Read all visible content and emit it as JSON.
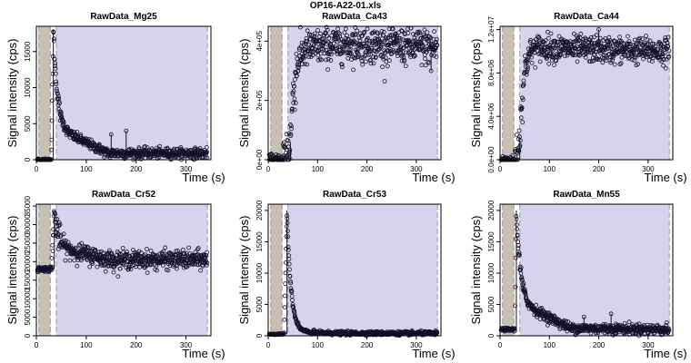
{
  "page": {
    "title": "OP16-A22-01.xls"
  },
  "colors": {
    "background_window": "#c8c0b2",
    "signal_window": "#d6d3ee",
    "window_dash": "#9999aa",
    "points": "#14102a"
  },
  "chart_data": [
    {
      "type": "scatter",
      "title": "RawData_Mg25",
      "xlabel": "Time (s)",
      "ylabel": "Signal intensity (cps)",
      "xlim": [
        0,
        350
      ],
      "ylim": [
        0,
        18500
      ],
      "xticks": [
        0,
        100,
        200,
        300
      ],
      "xtick_labels": [
        "0",
        "100",
        "200",
        "300"
      ],
      "yticks": [
        0,
        5000,
        10000,
        15000
      ],
      "ytick_labels": [
        "0",
        "5000",
        "10000",
        "15000"
      ],
      "background_window": [
        5,
        28
      ],
      "signal_window": [
        40,
        343
      ],
      "profile": {
        "pre_value": 0,
        "onset": 30,
        "spike_time": 34,
        "spike_value": 18000,
        "plateau_early": 4500,
        "plateau_mid": 900,
        "plateau_late": 900,
        "noise": 350,
        "outliers": [
          [
            150,
            3500
          ],
          [
            180,
            4000
          ]
        ]
      }
    },
    {
      "type": "scatter",
      "title": "RawData_Ca43",
      "xlabel": "Time (s)",
      "ylabel": "Signal intensity (cps)",
      "xlim": [
        0,
        350
      ],
      "ylim": [
        0,
        450000
      ],
      "xticks": [
        0,
        100,
        200,
        300
      ],
      "xtick_labels": [
        "0",
        "100",
        "200",
        "300"
      ],
      "yticks": [
        0,
        200000,
        400000
      ],
      "ytick_labels": [
        "0e+00",
        "2e+05",
        "4e+05"
      ],
      "background_window": [
        5,
        28
      ],
      "signal_window": [
        40,
        343
      ],
      "profile": {
        "pre_value": 0,
        "onset": 30,
        "spike_time": 45,
        "spike_value": 60000,
        "plateau_early": 370000,
        "plateau_mid": 390000,
        "plateau_late": 380000,
        "noise": 30000,
        "outliers": [
          [
            258,
            425000
          ],
          [
            330,
            300000
          ]
        ]
      }
    },
    {
      "type": "scatter",
      "title": "RawData_Ca44",
      "xlabel": "Time (s)",
      "ylabel": "Signal intensity (cps)",
      "xlim": [
        0,
        350
      ],
      "ylim": [
        0,
        12300000
      ],
      "xticks": [
        0,
        100,
        200,
        300
      ],
      "xtick_labels": [
        "0",
        "100",
        "200",
        "300"
      ],
      "yticks": [
        0,
        4000000,
        8000000,
        12000000
      ],
      "ytick_labels": [
        "0.0e+00",
        "4.0e+06",
        "8.0e+06",
        "1.2e+07"
      ],
      "background_window": [
        5,
        28
      ],
      "signal_window": [
        40,
        343
      ],
      "profile": {
        "pre_value": 0,
        "onset": 30,
        "spike_time": 40,
        "spike_value": 2000000,
        "plateau_early": 10500000,
        "plateau_mid": 10200000,
        "plateau_late": 10000000,
        "noise": 600000,
        "outliers": [
          [
            200,
            12000000
          ]
        ]
      }
    },
    {
      "type": "scatter",
      "title": "RawData_Cr52",
      "xlabel": "Time (s)",
      "ylabel": "Signal intensity (cps)",
      "xlim": [
        0,
        350
      ],
      "ylim": [
        0,
        35500
      ],
      "xticks": [
        0,
        100,
        200,
        300
      ],
      "xtick_labels": [
        "0",
        "100",
        "200",
        "300"
      ],
      "yticks": [
        0,
        5000,
        10000,
        15000,
        20000,
        25000,
        30000,
        35000
      ],
      "ytick_labels": [
        "0",
        "5000",
        "10000",
        "15000",
        "20000",
        "25000",
        "30000",
        "35000"
      ],
      "background_window": [
        5,
        28
      ],
      "signal_window": [
        40,
        343
      ],
      "profile": {
        "pre_value": 18000,
        "onset": 30,
        "spike_time": 36,
        "spike_value": 33000,
        "plateau_early": 24000,
        "plateau_mid": 20500,
        "plateau_late": 20500,
        "noise": 1200,
        "outliers": []
      }
    },
    {
      "type": "scatter",
      "title": "RawData_Cr53",
      "xlabel": "Time (s)",
      "ylabel": "Signal intensity (cps)",
      "xlim": [
        0,
        350
      ],
      "ylim": [
        0,
        21000
      ],
      "xticks": [
        0,
        100,
        200,
        300
      ],
      "xtick_labels": [
        "0",
        "100",
        "200",
        "300"
      ],
      "yticks": [
        0,
        5000,
        10000,
        15000,
        20000
      ],
      "ytick_labels": [
        "0",
        "5000",
        "10000",
        "15000",
        "20000"
      ],
      "background_window": [
        5,
        28
      ],
      "signal_window": [
        40,
        343
      ],
      "profile": {
        "pre_value": 250,
        "onset": 32,
        "spike_time": 38,
        "spike_value": 20000,
        "plateau_early": 600,
        "plateau_mid": 400,
        "plateau_late": 400,
        "noise": 150,
        "outliers": []
      }
    },
    {
      "type": "scatter",
      "title": "RawData_Mn55",
      "xlabel": "Time (s)",
      "ylabel": "Signal intensity (cps)",
      "xlim": [
        0,
        350
      ],
      "ylim": [
        0,
        21000
      ],
      "xticks": [
        0,
        100,
        200,
        300
      ],
      "xtick_labels": [
        "0",
        "100",
        "200",
        "300"
      ],
      "yticks": [
        0,
        5000,
        10000,
        15000,
        20000
      ],
      "ytick_labels": [
        "0",
        "5000",
        "10000",
        "15000",
        "20000"
      ],
      "background_window": [
        5,
        28
      ],
      "signal_window": [
        40,
        343
      ],
      "profile": {
        "pre_value": 1000,
        "onset": 30,
        "spike_time": 33,
        "spike_value": 20000,
        "plateau_early": 5500,
        "plateau_mid": 1200,
        "plateau_late": 1000,
        "noise": 400,
        "outliers": [
          [
            170,
            3000
          ],
          [
            225,
            3500
          ]
        ]
      }
    }
  ]
}
